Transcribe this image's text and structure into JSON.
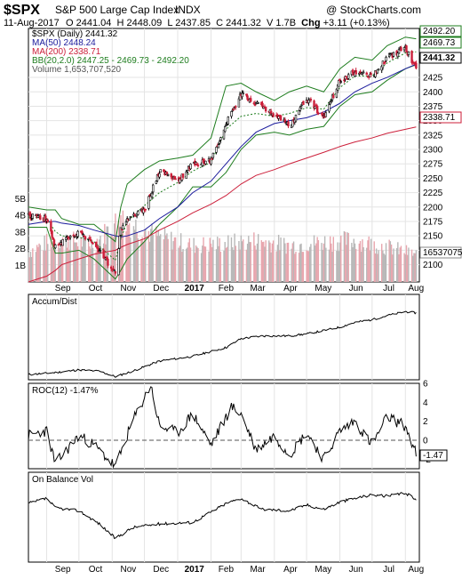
{
  "header": {
    "symbol": "$SPX",
    "name": "S&P 500 Large Cap Index",
    "exchange": "INDX",
    "watermark": "@ StockCharts.com",
    "date": "11-Aug-2017",
    "quote": {
      "open_label": "O",
      "open": "2441.04",
      "high_label": "H",
      "high": "2448.09",
      "low_label": "L",
      "low": "2437.85",
      "close_label": "C",
      "close": "2441.32",
      "volume_label": "V",
      "volume": "1.7B",
      "change_label": "Chg",
      "change": "+3.11 (+0.13%)"
    }
  },
  "main_legend": [
    {
      "text": "$SPX (Daily) 2441.32",
      "color": "#000000"
    },
    {
      "text": "MA(50) 2448.24",
      "color": "#1a1a9c"
    },
    {
      "text": "MA(200) 2338.71",
      "color": "#cc1f3a"
    },
    {
      "text": "BB(20,2.0) 2447.25 - 2469.73 - 2492.20",
      "color": "#1e7d1e"
    },
    {
      "text": "Volume 1,653,707,520",
      "color": "#777777"
    }
  ],
  "x_axis_labels": [
    "Sep",
    "Oct",
    "Nov",
    "Dec",
    "2017",
    "Feb",
    "Mar",
    "Apr",
    "May",
    "Jun",
    "Jul",
    "Aug"
  ],
  "colors": {
    "price_up": "#000000",
    "price_down": "#cc1f3a",
    "ma50": "#1a1a9c",
    "ma200": "#cc1f3a",
    "bb": "#1e7d1e",
    "volume_up": "#b8b8b8",
    "volume_down": "#e8a6ae",
    "grid": "#e4e4e4",
    "indicator": "#000000"
  },
  "chart_data": [
    {
      "type": "line",
      "title": "$SPX (Daily) 2441.32",
      "xlabel": "",
      "ylabel": "",
      "ylim": [
        2070,
        2510
      ],
      "y_ticks": [
        2100,
        2125,
        2150,
        2175,
        2200,
        2225,
        2250,
        2275,
        2300,
        2325,
        2350,
        2375,
        2400,
        2425
      ],
      "price_tags": [
        "2492.20",
        "2469.73",
        "2441.32",
        "2338.71"
      ],
      "x": [
        "2016-08-15",
        "2016-09-01",
        "2016-09-09",
        "2016-09-15",
        "2016-10-01",
        "2016-10-15",
        "2016-11-04",
        "2016-11-09",
        "2016-11-15",
        "2016-12-01",
        "2016-12-15",
        "2017-01-01",
        "2017-01-15",
        "2017-02-01",
        "2017-02-15",
        "2017-03-01",
        "2017-03-15",
        "2017-04-01",
        "2017-04-15",
        "2017-05-01",
        "2017-05-17",
        "2017-06-01",
        "2017-06-15",
        "2017-07-01",
        "2017-07-15",
        "2017-08-01",
        "2017-08-11"
      ],
      "series": [
        {
          "name": "$SPX (Daily) 2441.32",
          "values": [
            2185,
            2180,
            2130,
            2140,
            2155,
            2135,
            2085,
            2160,
            2180,
            2195,
            2262,
            2245,
            2275,
            2280,
            2345,
            2395,
            2380,
            2360,
            2340,
            2390,
            2355,
            2420,
            2435,
            2425,
            2460,
            2475,
            2441
          ]
        },
        {
          "name": "MA(50) 2448.24",
          "values": [
            2170,
            2175,
            2175,
            2172,
            2168,
            2160,
            2150,
            2148,
            2150,
            2160,
            2180,
            2200,
            2225,
            2245,
            2275,
            2305,
            2330,
            2345,
            2350,
            2355,
            2365,
            2380,
            2400,
            2415,
            2425,
            2440,
            2448
          ]
        },
        {
          "name": "MA(200) 2338.71",
          "values": [
            2070,
            2080,
            2090,
            2100,
            2110,
            2118,
            2125,
            2130,
            2135,
            2145,
            2160,
            2175,
            2190,
            2205,
            2220,
            2240,
            2255,
            2265,
            2275,
            2285,
            2295,
            2305,
            2313,
            2320,
            2328,
            2335,
            2339
          ]
        },
        {
          "name": "BB(20,2.0) upper",
          "values": [
            2200,
            2195,
            2195,
            2180,
            2170,
            2170,
            2140,
            2200,
            2240,
            2265,
            2280,
            2285,
            2290,
            2320,
            2410,
            2415,
            2400,
            2385,
            2400,
            2410,
            2400,
            2440,
            2460,
            2455,
            2480,
            2495,
            2492
          ]
        },
        {
          "name": "BB(20,2.0) lower",
          "values": [
            2165,
            2165,
            2120,
            2120,
            2125,
            2110,
            2075,
            2090,
            2110,
            2140,
            2170,
            2200,
            2235,
            2235,
            2260,
            2300,
            2325,
            2330,
            2325,
            2335,
            2340,
            2375,
            2395,
            2400,
            2420,
            2440,
            2447
          ]
        }
      ]
    },
    {
      "type": "bar",
      "title": "Volume 1,653,707,520",
      "ylim": [
        0,
        6000000000
      ],
      "y_ticks": [
        "1B",
        "2B",
        "3B",
        "4B",
        "5B"
      ],
      "last_value": 1653707520,
      "x": [
        "2016-08-15",
        "2016-09-09",
        "2016-10-15",
        "2016-11-09",
        "2016-12-15",
        "2017-01-15",
        "2017-02-15",
        "2017-03-15",
        "2017-04-15",
        "2017-05-17",
        "2017-06-15",
        "2017-07-15",
        "2017-08-11"
      ],
      "values": [
        1800000000,
        2600000000,
        2300000000,
        3800000000,
        2700000000,
        2200000000,
        2300000000,
        2500000000,
        2200000000,
        2400000000,
        2500000000,
        2100000000,
        1650000000
      ]
    },
    {
      "type": "line",
      "title": "Accum/Dist",
      "x": [
        "2016-08-15",
        "2016-09-09",
        "2016-10-01",
        "2016-10-20",
        "2016-11-04",
        "2016-11-20",
        "2016-12-15",
        "2017-01-15",
        "2017-02-15",
        "2017-03-01",
        "2017-03-20",
        "2017-04-15",
        "2017-05-01",
        "2017-05-17",
        "2017-06-01",
        "2017-06-15",
        "2017-07-01",
        "2017-07-15",
        "2017-08-01",
        "2017-08-11"
      ],
      "series": [
        {
          "name": "Accum/Dist",
          "values": [
            5,
            8,
            12,
            10,
            2,
            10,
            25,
            32,
            45,
            58,
            62,
            62,
            65,
            70,
            75,
            82,
            86,
            92,
            98,
            96
          ]
        }
      ]
    },
    {
      "type": "line",
      "title": "ROC(12) -1.47%",
      "ylim": [
        -3,
        6
      ],
      "y_ticks": [
        -2,
        0,
        2,
        4,
        6
      ],
      "last_value": -1.47,
      "x": [
        "2016-08-15",
        "2016-09-01",
        "2016-09-09",
        "2016-09-20",
        "2016-10-01",
        "2016-10-15",
        "2016-11-04",
        "2016-11-20",
        "2016-12-07",
        "2016-12-15",
        "2017-01-01",
        "2017-01-15",
        "2017-02-01",
        "2017-02-20",
        "2017-03-01",
        "2017-03-15",
        "2017-04-01",
        "2017-04-15",
        "2017-05-01",
        "2017-05-17",
        "2017-06-01",
        "2017-06-15",
        "2017-07-01",
        "2017-07-15",
        "2017-08-01",
        "2017-08-11"
      ],
      "series": [
        {
          "name": "ROC(12) -1.47%",
          "values": [
            0.5,
            1.0,
            -2.5,
            -1.0,
            0.5,
            -0.5,
            -2.8,
            2.0,
            5.8,
            1.5,
            0.8,
            2.8,
            -0.5,
            3.5,
            2.8,
            -1.0,
            0.5,
            -1.5,
            0.8,
            -2.0,
            1.0,
            2.0,
            -0.5,
            2.5,
            1.5,
            -1.47
          ]
        }
      ]
    },
    {
      "type": "line",
      "title": "On Balance Vol",
      "x": [
        "2016-08-15",
        "2016-09-01",
        "2016-09-09",
        "2016-10-01",
        "2016-10-20",
        "2016-11-04",
        "2016-11-20",
        "2016-12-15",
        "2017-01-15",
        "2017-02-15",
        "2017-03-01",
        "2017-03-20",
        "2017-04-15",
        "2017-05-01",
        "2017-05-17",
        "2017-06-01",
        "2017-06-15",
        "2017-07-01",
        "2017-07-15",
        "2017-08-01",
        "2017-08-11"
      ],
      "series": [
        {
          "name": "On Balance Vol",
          "values": [
            78,
            85,
            72,
            68,
            50,
            30,
            45,
            50,
            52,
            78,
            85,
            70,
            68,
            76,
            70,
            80,
            85,
            90,
            88,
            92,
            84
          ]
        }
      ]
    }
  ]
}
